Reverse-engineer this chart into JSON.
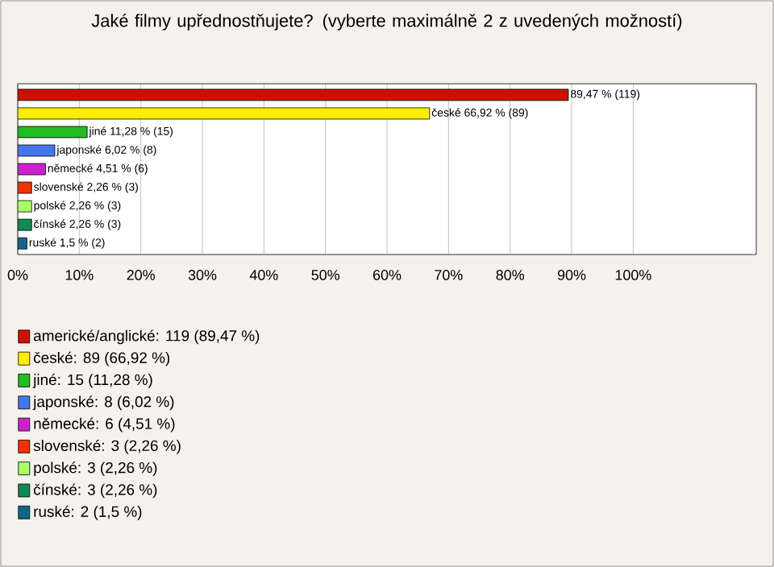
{
  "chart_data": {
    "type": "bar",
    "orientation": "horizontal",
    "title": "Jaké filmy upřednostňujete? (vyberte maximálně 2 z uvedených možností)",
    "categories": [
      null,
      null,
      null,
      null,
      null,
      null,
      null,
      null,
      null
    ],
    "series": [
      {
        "name": "americké/anglické: 119 (89,47 %)",
        "color": "#cc1100",
        "values": [
          89.47,
          null,
          null,
          null,
          null,
          null,
          null,
          null,
          null
        ],
        "value_labels": [
          "89,47 % (119)",
          null,
          null,
          null,
          null,
          null,
          null,
          null,
          null
        ]
      },
      {
        "name": "české: 89 (66,92 %)",
        "color": "#ffee00",
        "values": [
          null,
          66.92,
          null,
          null,
          null,
          null,
          null,
          null,
          null
        ],
        "value_labels": [
          null,
          "české 66,92 % (89)",
          null,
          null,
          null,
          null,
          null,
          null,
          null
        ]
      },
      {
        "name": "jiné: 15 (11,28 %)",
        "color": "#22bb22",
        "values": [
          null,
          null,
          11.28,
          null,
          null,
          null,
          null,
          null,
          null
        ],
        "value_labels": [
          null,
          null,
          "jiné 11,28 % (15)",
          null,
          null,
          null,
          null,
          null,
          null
        ]
      },
      {
        "name": "japonské: 8 (6,02 %)",
        "color": "#4477ee",
        "values": [
          null,
          null,
          null,
          6.02,
          null,
          null,
          null,
          null,
          null
        ],
        "value_labels": [
          null,
          null,
          null,
          "japonské 6,02 % (8)",
          null,
          null,
          null,
          null,
          null
        ]
      },
      {
        "name": "německé: 6 (4,51 %)",
        "color": "#cc22cc",
        "values": [
          null,
          null,
          null,
          null,
          4.51,
          null,
          null,
          null,
          null
        ],
        "value_labels": [
          null,
          null,
          null,
          null,
          "německé 4,51 % (6)",
          null,
          null,
          null,
          null
        ]
      },
      {
        "name": "slovenské: 3 (2,26 %)",
        "color": "#ee3300",
        "values": [
          null,
          null,
          null,
          null,
          null,
          2.26,
          null,
          null,
          null
        ],
        "value_labels": [
          null,
          null,
          null,
          null,
          null,
          "slovenské 2,26 % (3)",
          null,
          null,
          null
        ]
      },
      {
        "name": "polské: 3 (2,26 %)",
        "color": "#aaff66",
        "values": [
          null,
          null,
          null,
          null,
          null,
          null,
          2.26,
          null,
          null
        ],
        "value_labels": [
          null,
          null,
          null,
          null,
          null,
          null,
          "polské 2,26 % (3)",
          null,
          null
        ]
      },
      {
        "name": "čínské: 3 (2,26 %)",
        "color": "#118855",
        "values": [
          null,
          null,
          null,
          null,
          null,
          null,
          null,
          2.26,
          null
        ],
        "value_labels": [
          null,
          null,
          null,
          null,
          null,
          null,
          null,
          "čínské 2,26 % (3)",
          null
        ]
      },
      {
        "name": "ruské: 2 (1,5 %)",
        "color": "#116688",
        "values": [
          null,
          null,
          null,
          null,
          null,
          null,
          null,
          null,
          1.5
        ],
        "value_labels": [
          null,
          null,
          null,
          null,
          null,
          null,
          null,
          null,
          "ruské 1,5 % (2)"
        ]
      }
    ],
    "xlim": [
      0,
      120
    ],
    "xticks": [
      {
        "value": 0,
        "label": "0%"
      },
      {
        "value": 10,
        "label": "10%"
      },
      {
        "value": 20,
        "label": "20%"
      },
      {
        "value": 30,
        "label": "30%"
      },
      {
        "value": 40,
        "label": "40%"
      },
      {
        "value": 50,
        "label": "50%"
      },
      {
        "value": 60,
        "label": "60%"
      },
      {
        "value": 70,
        "label": "70%"
      },
      {
        "value": 80,
        "label": "80%"
      },
      {
        "value": 90,
        "label": "90%"
      },
      {
        "value": 100,
        "label": "100%"
      }
    ],
    "grid": "x",
    "legend": "bottom",
    "tick_labels": "x"
  }
}
